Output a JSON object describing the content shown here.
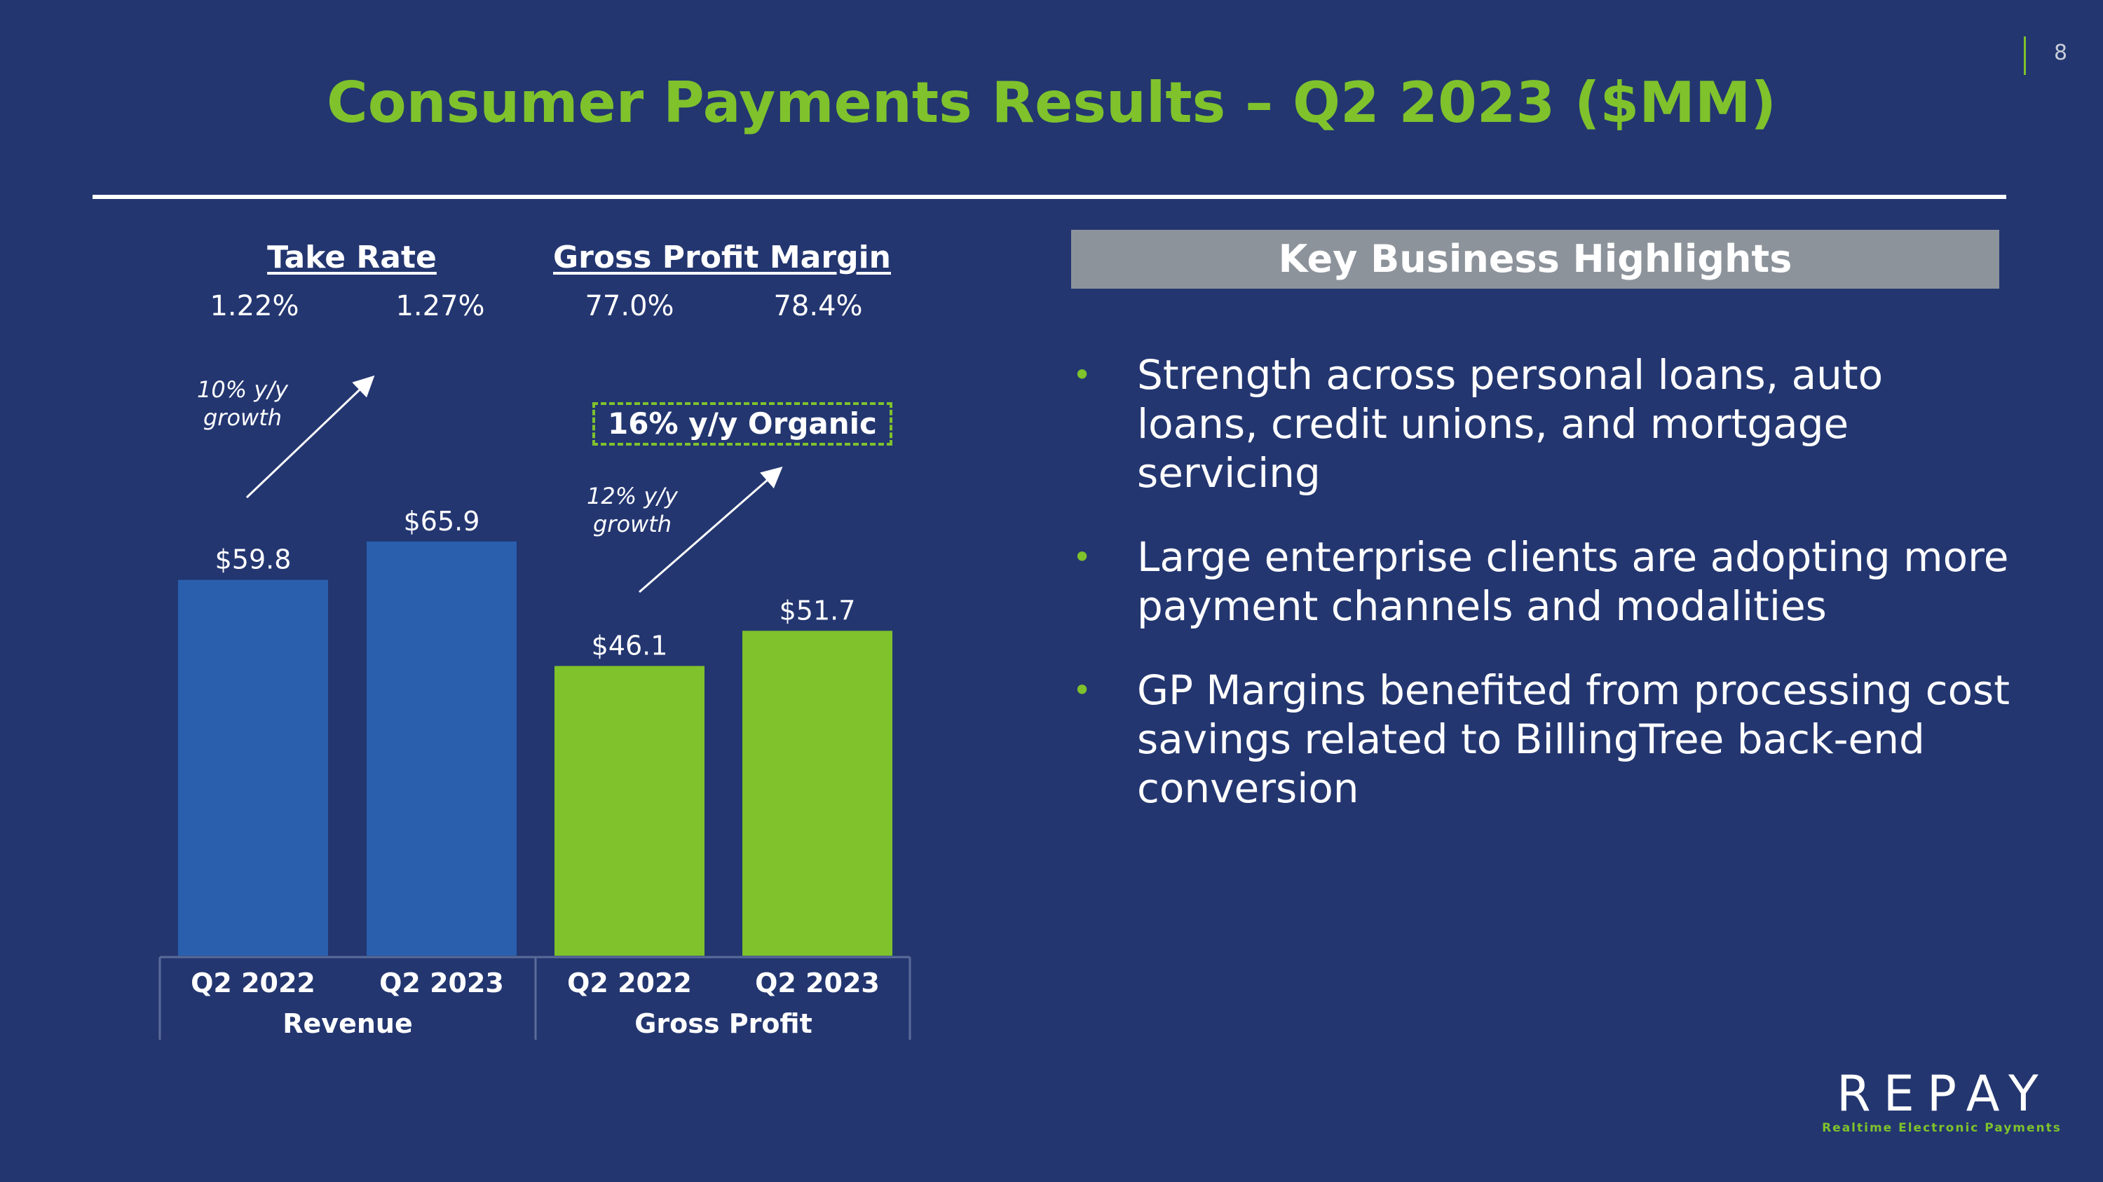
{
  "page_number": "8",
  "title": "Consumer Payments Results – Q2 2023 ($MM)",
  "metrics": {
    "take_rate": {
      "label": "Take Rate",
      "values": [
        "1.22%",
        "1.27%"
      ]
    },
    "gross_profit_margin": {
      "label": "Gross Profit Margin",
      "values": [
        "77.0%",
        "78.4%"
      ]
    }
  },
  "annotations": {
    "revenue_growth": [
      "10% y/y",
      "growth"
    ],
    "gross_profit_growth": [
      "12% y/y",
      "growth"
    ],
    "organic": "16% y/y Organic"
  },
  "chart_data": {
    "type": "bar",
    "categories": [
      "Q2 2022",
      "Q2 2023",
      "Q2 2022",
      "Q2 2023"
    ],
    "groups": [
      {
        "name": "Revenue",
        "categories": [
          "Q2 2022",
          "Q2 2023"
        ],
        "values": [
          59.8,
          65.9
        ],
        "labels": [
          "$59.8",
          "$65.9"
        ],
        "color": "#2a5fad"
      },
      {
        "name": "Gross Profit",
        "categories": [
          "Q2 2022",
          "Q2 2023"
        ],
        "values": [
          46.1,
          51.7
        ],
        "labels": [
          "$46.1",
          "$51.7"
        ],
        "color": "#7fc22c"
      }
    ],
    "title": "",
    "ylim": [
      0,
      66
    ],
    "grid": false
  },
  "highlights": {
    "header": "Key Business Highlights",
    "items": [
      "Strength across personal loans, auto loans, credit unions, and mortgage servicing",
      "Large enterprise clients are adopting more payment channels and modalities",
      "GP Margins benefited from processing cost savings related to BillingTree back-end conversion"
    ]
  },
  "logo": {
    "wordmark": "REPAY",
    "tagline": "Realtime Electronic Payments"
  },
  "colors": {
    "background": "#233670",
    "accent": "#7fc22c",
    "revenue_bar": "#2a5fad",
    "header_box": "#8d939b"
  }
}
